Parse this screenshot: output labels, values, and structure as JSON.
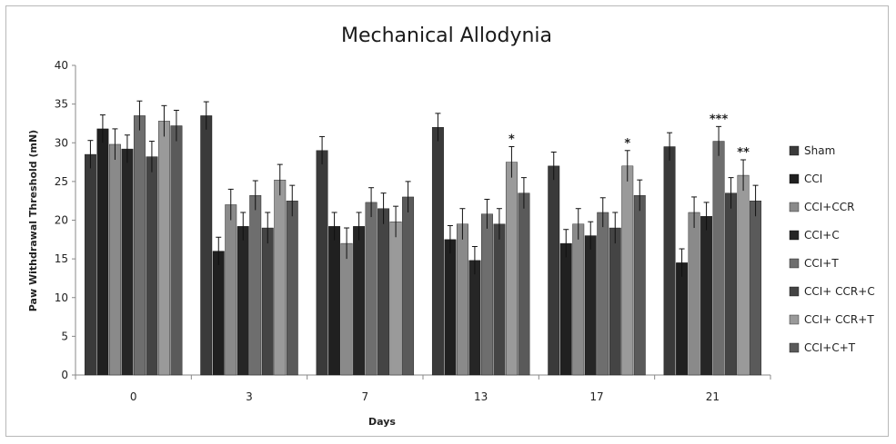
{
  "chart_data": {
    "type": "bar",
    "title": "Mechanical Allodynia",
    "xlabel": "Days",
    "ylabel": "Paw Withdrawal Threshold (mN)",
    "ylim": [
      0,
      40
    ],
    "yticks": [
      0,
      5,
      10,
      15,
      20,
      25,
      30,
      35,
      40
    ],
    "categories": [
      "0",
      "3",
      "7",
      "13",
      "17",
      "21"
    ],
    "grid": false,
    "legend_position": "right",
    "series": [
      {
        "name": "Sham",
        "color": "#3a3a3a",
        "values": [
          28.5,
          33.5,
          29.0,
          32.0,
          27.0,
          29.5
        ],
        "errors": [
          1.8,
          1.8,
          1.8,
          1.8,
          1.8,
          1.8
        ]
      },
      {
        "name": "CCI",
        "color": "#202020",
        "values": [
          31.8,
          16.0,
          19.2,
          17.5,
          17.0,
          14.5
        ],
        "errors": [
          1.8,
          1.8,
          1.8,
          1.8,
          1.8,
          1.8
        ]
      },
      {
        "name": "CCI+CCR",
        "color": "#8a8a8a",
        "values": [
          29.8,
          22.0,
          17.0,
          19.5,
          19.5,
          21.0
        ],
        "errors": [
          2.0,
          2.0,
          2.0,
          2.0,
          2.0,
          2.0
        ]
      },
      {
        "name": "CCI+C",
        "color": "#262626",
        "values": [
          29.2,
          19.2,
          19.2,
          14.8,
          18.0,
          20.5
        ],
        "errors": [
          1.8,
          1.8,
          1.8,
          1.8,
          1.8,
          1.8
        ]
      },
      {
        "name": "CCI+T",
        "color": "#6e6e6e",
        "values": [
          33.5,
          23.2,
          22.3,
          20.8,
          21.0,
          30.2
        ],
        "errors": [
          1.9,
          1.9,
          1.9,
          1.9,
          1.9,
          1.9
        ]
      },
      {
        "name": "CCI+ CCR+C",
        "color": "#444444",
        "values": [
          28.2,
          19.0,
          21.5,
          19.5,
          19.0,
          23.5
        ],
        "errors": [
          2.0,
          2.0,
          2.0,
          2.0,
          2.0,
          2.0
        ]
      },
      {
        "name": "CCI+ CCR+T",
        "color": "#9a9a9a",
        "values": [
          32.8,
          25.2,
          19.8,
          27.5,
          27.0,
          25.8
        ],
        "errors": [
          2.0,
          2.0,
          2.0,
          2.0,
          2.0,
          2.0
        ]
      },
      {
        "name": "CCI+C+T",
        "color": "#5a5a5a",
        "values": [
          32.2,
          22.5,
          23.0,
          23.5,
          23.2,
          22.5
        ],
        "errors": [
          2.0,
          2.0,
          2.0,
          2.0,
          2.0,
          2.0
        ]
      }
    ],
    "annotations": [
      {
        "text": "*",
        "category": "13",
        "series": "CCI+ CCR+T"
      },
      {
        "text": "*",
        "category": "17",
        "series": "CCI+ CCR+T"
      },
      {
        "text": "***",
        "category": "21",
        "series": "CCI+T"
      },
      {
        "text": "**",
        "category": "21",
        "series": "CCI+ CCR+T"
      }
    ]
  }
}
